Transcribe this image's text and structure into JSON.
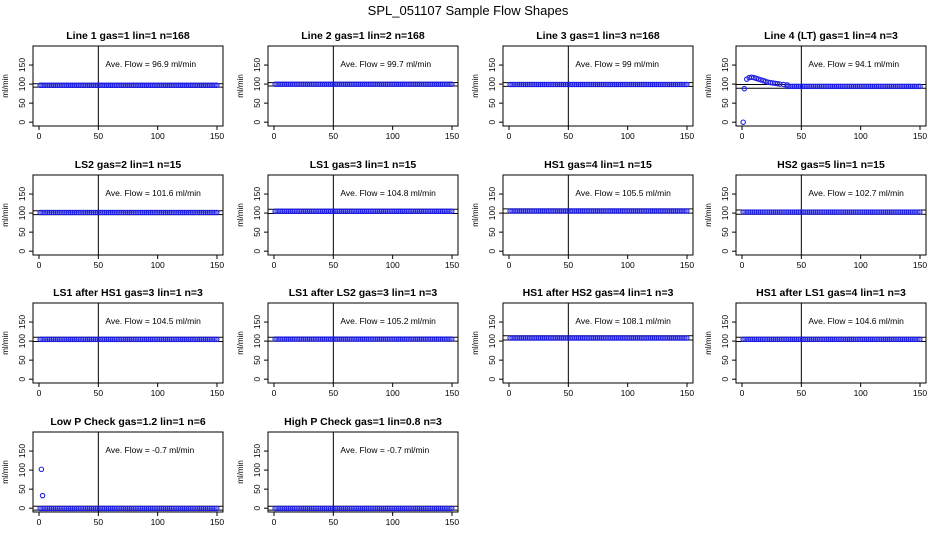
{
  "page": {
    "title": "SPL_051107  Sample Flow Shapes"
  },
  "chart_data": [
    {
      "type": "scatter",
      "title": "Line 1 gas=1 lin=1 n=168",
      "ylabel": "ml/min",
      "annotation": "Ave. Flow =  96.9  ml/min",
      "xlim": [
        0,
        150
      ],
      "ylim": [
        -10,
        200
      ],
      "xticks": [
        0,
        50,
        100,
        150
      ],
      "yticks": [
        0,
        50,
        100,
        150
      ],
      "vline": 50,
      "hlines": [
        92,
        101
      ],
      "pattern": "flat",
      "level": 96.9,
      "points": []
    },
    {
      "type": "scatter",
      "title": "Line 2 gas=1 lin=2 n=168",
      "ylabel": "ml/min",
      "annotation": "Ave. Flow =  99.7  ml/min",
      "xlim": [
        0,
        150
      ],
      "ylim": [
        -10,
        200
      ],
      "xticks": [
        0,
        50,
        100,
        150
      ],
      "yticks": [
        0,
        50,
        100,
        150
      ],
      "vline": 50,
      "hlines": [
        95,
        104
      ],
      "pattern": "flat",
      "level": 99.7,
      "points": []
    },
    {
      "type": "scatter",
      "title": "Line 3 gas=1 lin=3 n=168",
      "ylabel": "ml/min",
      "annotation": "Ave. Flow =  99  ml/min",
      "xlim": [
        0,
        150
      ],
      "ylim": [
        -10,
        200
      ],
      "xticks": [
        0,
        50,
        100,
        150
      ],
      "yticks": [
        0,
        50,
        100,
        150
      ],
      "vline": 50,
      "hlines": [
        94,
        104
      ],
      "pattern": "flat",
      "level": 99,
      "points": []
    },
    {
      "type": "scatter",
      "title": "Line 4 (LT) gas=1 lin=4 n=3",
      "ylabel": "ml/min",
      "annotation": "Ave. Flow =  94.1  ml/min",
      "xlim": [
        0,
        150
      ],
      "ylim": [
        -10,
        200
      ],
      "xticks": [
        0,
        50,
        100,
        150
      ],
      "yticks": [
        0,
        50,
        100,
        150
      ],
      "vline": 50,
      "hlines": [
        89,
        99
      ],
      "pattern": "overshoot",
      "level": 94.1,
      "points": [
        [
          1,
          0
        ],
        [
          2,
          88
        ],
        [
          4,
          113
        ],
        [
          6,
          117
        ],
        [
          8,
          118
        ],
        [
          10,
          117
        ],
        [
          12,
          115
        ],
        [
          14,
          113
        ],
        [
          16,
          111
        ],
        [
          18,
          109
        ],
        [
          20,
          107
        ],
        [
          22,
          105
        ],
        [
          24,
          104
        ],
        [
          26,
          103
        ],
        [
          28,
          102
        ],
        [
          30,
          101
        ],
        [
          32,
          100
        ],
        [
          35,
          99
        ],
        [
          38,
          98
        ]
      ]
    },
    {
      "type": "scatter",
      "title": "LS2 gas=2 lin=1 n=15",
      "ylabel": "ml/min",
      "annotation": "Ave. Flow =  101.6  ml/min",
      "xlim": [
        0,
        150
      ],
      "ylim": [
        -10,
        200
      ],
      "xticks": [
        0,
        50,
        100,
        150
      ],
      "yticks": [
        0,
        50,
        100,
        150
      ],
      "vline": 50,
      "hlines": [
        96,
        106
      ],
      "pattern": "flat",
      "level": 101.6,
      "points": []
    },
    {
      "type": "scatter",
      "title": "LS1 gas=3 lin=1 n=15",
      "ylabel": "ml/min",
      "annotation": "Ave. Flow =  104.8  ml/min",
      "xlim": [
        0,
        150
      ],
      "ylim": [
        -10,
        200
      ],
      "xticks": [
        0,
        50,
        100,
        150
      ],
      "yticks": [
        0,
        50,
        100,
        150
      ],
      "vline": 50,
      "hlines": [
        99,
        110
      ],
      "pattern": "flat",
      "level": 104.8,
      "points": []
    },
    {
      "type": "scatter",
      "title": "HS1 gas=4 lin=1 n=15",
      "ylabel": "ml/min",
      "annotation": "Ave. Flow =  105.5  ml/min",
      "xlim": [
        0,
        150
      ],
      "ylim": [
        -10,
        200
      ],
      "xticks": [
        0,
        50,
        100,
        150
      ],
      "yticks": [
        0,
        50,
        100,
        150
      ],
      "vline": 50,
      "hlines": [
        100,
        111
      ],
      "pattern": "flat",
      "level": 105.5,
      "points": []
    },
    {
      "type": "scatter",
      "title": "HS2 gas=5 lin=1 n=15",
      "ylabel": "ml/min",
      "annotation": "Ave. Flow =  102.7  ml/min",
      "xlim": [
        0,
        150
      ],
      "ylim": [
        -10,
        200
      ],
      "xticks": [
        0,
        50,
        100,
        150
      ],
      "yticks": [
        0,
        50,
        100,
        150
      ],
      "vline": 50,
      "hlines": [
        97,
        108
      ],
      "pattern": "flat",
      "level": 102.7,
      "points": []
    },
    {
      "type": "scatter",
      "title": "LS1 after HS1 gas=3 lin=1 n=3",
      "ylabel": "ml/min",
      "annotation": "Ave. Flow =  104.5  ml/min",
      "xlim": [
        0,
        150
      ],
      "ylim": [
        -10,
        200
      ],
      "xticks": [
        0,
        50,
        100,
        150
      ],
      "yticks": [
        0,
        50,
        100,
        150
      ],
      "vline": 50,
      "hlines": [
        99,
        110
      ],
      "pattern": "flat",
      "level": 104.5,
      "points": []
    },
    {
      "type": "scatter",
      "title": "LS1 after LS2 gas=3 lin=1 n=3",
      "ylabel": "ml/min",
      "annotation": "Ave. Flow =  105.2  ml/min",
      "xlim": [
        0,
        150
      ],
      "ylim": [
        -10,
        200
      ],
      "xticks": [
        0,
        50,
        100,
        150
      ],
      "yticks": [
        0,
        50,
        100,
        150
      ],
      "vline": 50,
      "hlines": [
        100,
        110
      ],
      "pattern": "flat",
      "level": 105.2,
      "points": []
    },
    {
      "type": "scatter",
      "title": "HS1 after HS2 gas=4 lin=1 n=3",
      "ylabel": "ml/min",
      "annotation": "Ave. Flow =  108.1  ml/min",
      "xlim": [
        0,
        150
      ],
      "ylim": [
        -10,
        200
      ],
      "xticks": [
        0,
        50,
        100,
        150
      ],
      "yticks": [
        0,
        50,
        100,
        150
      ],
      "vline": 50,
      "hlines": [
        103,
        114
      ],
      "pattern": "flat",
      "level": 108.1,
      "points": []
    },
    {
      "type": "scatter",
      "title": "HS1 after LS1 gas=4 lin=1 n=3",
      "ylabel": "ml/min",
      "annotation": "Ave. Flow =  104.6  ml/min",
      "xlim": [
        0,
        150
      ],
      "ylim": [
        -10,
        200
      ],
      "xticks": [
        0,
        50,
        100,
        150
      ],
      "yticks": [
        0,
        50,
        100,
        150
      ],
      "vline": 50,
      "hlines": [
        99,
        110
      ],
      "pattern": "flat",
      "level": 104.6,
      "points": []
    },
    {
      "type": "scatter",
      "title": "Low P Check gas=1.2 lin=1 n=6",
      "ylabel": "ml/min",
      "annotation": "Ave. Flow =  -0.7  ml/min",
      "xlim": [
        0,
        150
      ],
      "ylim": [
        -10,
        200
      ],
      "xticks": [
        0,
        50,
        100,
        150
      ],
      "yticks": [
        0,
        50,
        100,
        150
      ],
      "vline": 50,
      "hlines": [
        -5,
        5
      ],
      "pattern": "flat",
      "level": -0.7,
      "points": [
        [
          2,
          102
        ],
        [
          3,
          33
        ]
      ]
    },
    {
      "type": "scatter",
      "title": "High P Check gas=1 lin=0.8 n=3",
      "ylabel": "ml/min",
      "annotation": "Ave. Flow =  -0.7  ml/min",
      "xlim": [
        0,
        150
      ],
      "ylim": [
        -10,
        200
      ],
      "xticks": [
        0,
        50,
        100,
        150
      ],
      "yticks": [
        0,
        50,
        100,
        150
      ],
      "vline": 50,
      "hlines": [
        -5,
        5
      ],
      "pattern": "flat",
      "level": -0.7,
      "points": []
    }
  ],
  "colors": {
    "points": "#1f1fe0",
    "axis": "#000000",
    "background": "#ffffff"
  }
}
